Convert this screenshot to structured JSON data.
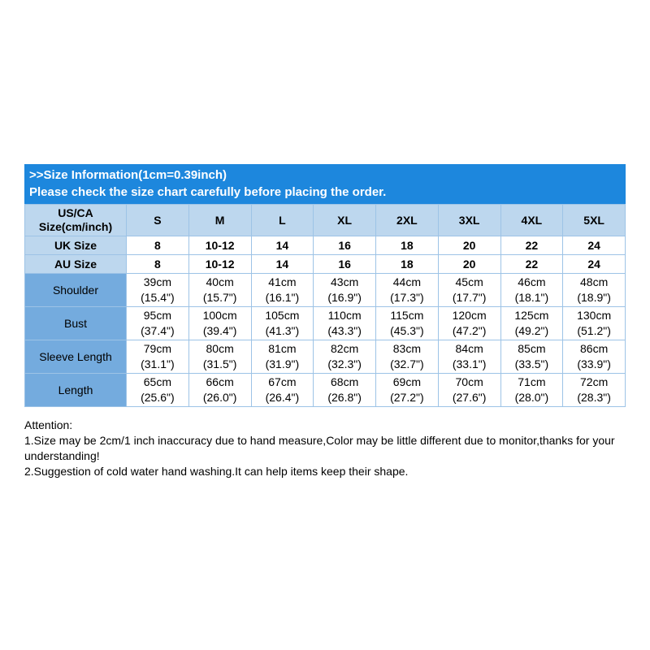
{
  "banner": {
    "line1": ">>Size Information(1cm=0.39inch)",
    "line2": "Please check the size chart carefully before placing the order."
  },
  "table": {
    "corner_label": "US/CA\nSize(cm/inch)",
    "sizes": [
      "S",
      "M",
      "L",
      "XL",
      "2XL",
      "3XL",
      "4XL",
      "5XL"
    ],
    "rows": [
      {
        "label": "UK Size",
        "values": [
          "8",
          "10-12",
          "14",
          "16",
          "18",
          "20",
          "22",
          "24"
        ]
      },
      {
        "label": "AU Size",
        "values": [
          "8",
          "10-12",
          "14",
          "16",
          "18",
          "20",
          "22",
          "24"
        ]
      },
      {
        "label": "Shoulder",
        "values": [
          "39cm\n(15.4\")",
          "40cm\n(15.7\")",
          "41cm\n(16.1\")",
          "43cm\n(16.9\")",
          "44cm\n(17.3\")",
          "45cm\n(17.7\")",
          "46cm\n(18.1\")",
          "48cm\n(18.9\")"
        ]
      },
      {
        "label": "Bust",
        "values": [
          "95cm\n(37.4\")",
          "100cm\n(39.4\")",
          "105cm\n(41.3\")",
          "110cm\n(43.3\")",
          "115cm\n(45.3\")",
          "120cm\n(47.2\")",
          "125cm\n(49.2\")",
          "130cm\n(51.2\")"
        ]
      },
      {
        "label": "Sleeve Length",
        "values": [
          "79cm\n(31.1\")",
          "80cm\n(31.5\")",
          "81cm\n(31.9\")",
          "82cm\n(32.3\")",
          "83cm\n(32.7\")",
          "84cm\n(33.1\")",
          "85cm\n(33.5\")",
          "86cm\n(33.9\")"
        ]
      },
      {
        "label": "Length",
        "values": [
          "65cm\n(25.6\")",
          "66cm\n(26.0\")",
          "67cm\n(26.4\")",
          "68cm\n(26.8\")",
          "69cm\n(27.2\")",
          "70cm\n(27.6\")",
          "71cm\n(28.0\")",
          "72cm\n(28.3\")"
        ]
      }
    ]
  },
  "attention": {
    "title": "Attention:",
    "items": [
      "1.Size may be 2cm/1 inch inaccuracy due to hand measure,Color may be little different due to monitor,thanks for your understanding!",
      "2.Suggestion of cold water hand washing.It can help items keep their shape."
    ]
  },
  "colors": {
    "banner_bg": "#1d87dd",
    "header_bg": "#bdd7ee",
    "label_bg": "#74abde",
    "border_color": "#9dc3e6"
  }
}
